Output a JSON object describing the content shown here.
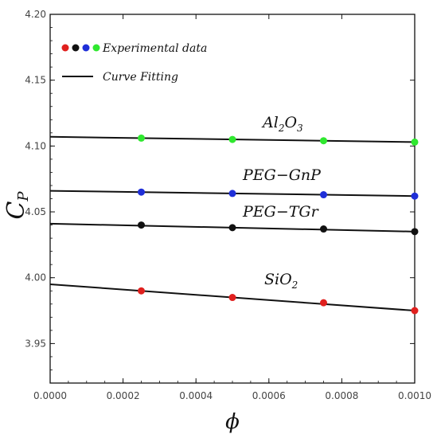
{
  "chart_data": {
    "type": "scatter",
    "xlabel": "ϕ",
    "ylabel_main": "C",
    "ylabel_sub": "P",
    "xlim": [
      0,
      0.001
    ],
    "ylim": [
      3.92,
      4.2
    ],
    "x_ticks": [
      "0.0000",
      "0.0002",
      "0.0004",
      "0.0006",
      "0.0008",
      "0.0010"
    ],
    "y_ticks": [
      "3.95",
      "4.00",
      "4.05",
      "4.10",
      "4.15",
      "4.20"
    ],
    "legend": {
      "position": "top-left",
      "points_label": "Experimental data",
      "line_label": "Curve Fitting",
      "dot_colors": [
        "#e0201e",
        "#111111",
        "#1f2fd8",
        "#2fe82f"
      ]
    },
    "series": [
      {
        "name": "Al2O3",
        "label_main": "Al",
        "label_sub1": "2",
        "label_mid": "O",
        "label_sub2": "3",
        "color": "#2fe82f",
        "x": [
          0.00025,
          0.0005,
          0.00075,
          0.001
        ],
        "y": [
          4.106,
          4.105,
          4.104,
          4.103
        ],
        "fit": [
          [
            0,
            4.107
          ],
          [
            0.001,
            4.103
          ]
        ]
      },
      {
        "name": "PEG-GnP",
        "label_main": "PEG−GnP",
        "color": "#1f2fd8",
        "x": [
          0.00025,
          0.0005,
          0.00075,
          0.001
        ],
        "y": [
          4.065,
          4.064,
          4.063,
          4.062
        ],
        "fit": [
          [
            0,
            4.066
          ],
          [
            0.001,
            4.062
          ]
        ]
      },
      {
        "name": "PEG-TGr",
        "label_main": "PEG−TGr",
        "color": "#111111",
        "x": [
          0.00025,
          0.0005,
          0.00075,
          0.001
        ],
        "y": [
          4.04,
          4.038,
          4.037,
          4.035
        ],
        "fit": [
          [
            0,
            4.041
          ],
          [
            0.001,
            4.035
          ]
        ]
      },
      {
        "name": "SiO2",
        "label_main": "SiO",
        "label_sub1": "2",
        "color": "#e0201e",
        "x": [
          0.00025,
          0.0005,
          0.00075,
          0.001
        ],
        "y": [
          3.99,
          3.985,
          3.981,
          3.975
        ],
        "fit": [
          [
            0,
            3.995
          ],
          [
            0.001,
            3.975
          ]
        ]
      }
    ]
  }
}
